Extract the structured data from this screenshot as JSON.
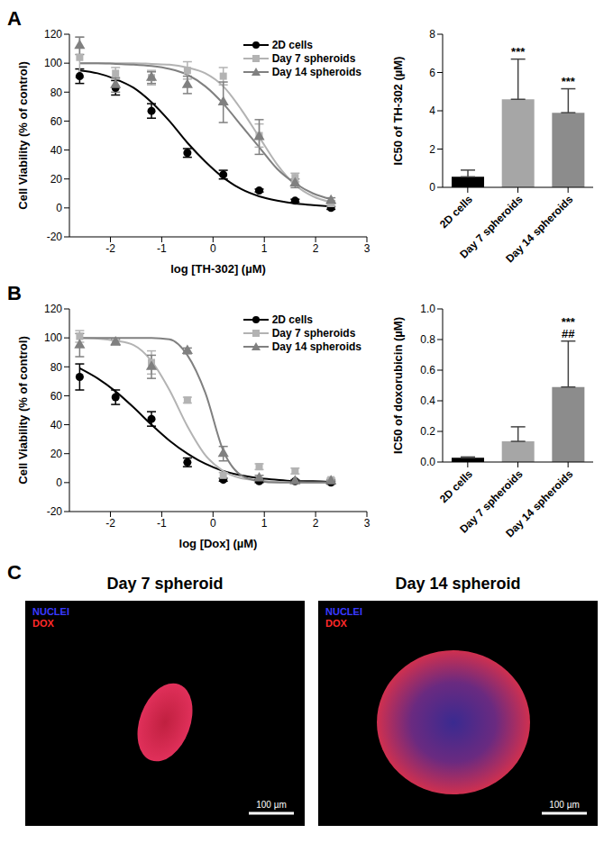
{
  "panel_labels": [
    "A",
    "B",
    "C"
  ],
  "chart_data": [
    {
      "type": "dose_response",
      "x_label": "log [TH-302] (µM)",
      "y_label": "Cell Viability (% of control)",
      "xlim": [
        -2.8,
        3
      ],
      "xticks": [
        -2,
        -1,
        0,
        1,
        2,
        3
      ],
      "ylim": [
        -20,
        120
      ],
      "yticks": [
        -20,
        0,
        20,
        40,
        60,
        80,
        100,
        120
      ],
      "grid": false,
      "legend": "upper right",
      "x": [
        -2.6,
        -1.9,
        -1.2,
        -0.5,
        0.2,
        0.9,
        1.6,
        2.3
      ],
      "fit_x": [
        -2.6,
        -2.25,
        -1.9,
        -1.55,
        -1.2,
        -0.85,
        -0.5,
        -0.15,
        0.2,
        0.55,
        0.9,
        1.25,
        1.6,
        1.95,
        2.3
      ],
      "series": [
        {
          "name": "2D cells",
          "color": "#000000",
          "marker": "circle",
          "values": [
            91,
            83,
            67,
            38,
            23,
            12,
            5,
            0
          ],
          "errors": [
            5,
            5,
            5,
            3,
            3,
            1,
            1,
            1
          ],
          "fit_values": [
            95,
            93,
            89,
            83,
            73,
            60,
            45,
            32,
            21,
            13,
            8,
            5,
            3,
            2,
            1
          ]
        },
        {
          "name": "Day 7 spheroids",
          "color": "#b3b3b3",
          "marker": "square",
          "values": [
            104,
            93,
            90,
            95,
            91,
            50,
            21,
            3
          ],
          "errors": [
            14,
            4,
            5,
            6,
            6,
            8,
            3,
            2
          ],
          "fit_values": [
            100,
            100,
            100,
            100,
            99.5,
            99,
            97,
            93,
            84,
            68,
            49,
            30,
            16,
            8,
            4
          ]
        },
        {
          "name": "Day 14 spheroids",
          "color": "#808080",
          "marker": "triangle",
          "values": [
            112,
            85,
            90,
            85,
            73,
            49,
            17,
            5
          ],
          "errors": [
            6,
            5,
            4,
            6,
            14,
            12,
            3,
            2
          ],
          "fit_values": [
            100,
            100,
            99.5,
            99,
            98,
            96,
            92,
            84,
            72,
            57,
            42,
            27,
            17,
            10,
            6
          ]
        }
      ]
    },
    {
      "type": "bar",
      "y_label": "IC50 of TH-302 (µM)",
      "categories": [
        "2D cells",
        "Day 7 spheroids",
        "Day 14 spheroids"
      ],
      "values": [
        0.55,
        4.6,
        3.9
      ],
      "errors": [
        0.35,
        2.1,
        1.25
      ],
      "annotations": [
        [],
        [
          "***"
        ],
        [
          "***"
        ]
      ],
      "colors": [
        "#000000",
        "#a6a6a6",
        "#8c8c8c"
      ],
      "ylim": [
        0,
        8
      ],
      "yticks": [
        0,
        2,
        4,
        6,
        8
      ],
      "grid": false
    },
    {
      "type": "dose_response",
      "x_label": "log [Dox] (µM)",
      "y_label": "Cell Viability (% of control)",
      "xlim": [
        -2.8,
        3
      ],
      "xticks": [
        -2,
        -1,
        0,
        1,
        2,
        3
      ],
      "ylim": [
        -20,
        120
      ],
      "yticks": [
        -20,
        0,
        20,
        40,
        60,
        80,
        100,
        120
      ],
      "grid": false,
      "legend": "upper right",
      "x": [
        -2.6,
        -1.9,
        -1.2,
        -0.5,
        0.2,
        0.9,
        1.6,
        2.3
      ],
      "fit_x": [
        -2.6,
        -2.25,
        -1.9,
        -1.55,
        -1.2,
        -0.85,
        -0.5,
        -0.15,
        0.2,
        0.55,
        0.9,
        1.25,
        1.6,
        1.95,
        2.3
      ],
      "series": [
        {
          "name": "2D cells",
          "color": "#000000",
          "marker": "circle",
          "values": [
            73,
            59,
            44,
            14,
            2,
            1,
            1,
            0
          ],
          "errors": [
            9,
            5,
            5,
            3,
            1,
            1,
            1,
            1
          ],
          "fit_values": [
            79,
            72,
            63,
            52,
            40,
            29,
            20,
            13,
            8,
            5,
            3,
            2,
            1,
            1,
            0.5
          ]
        },
        {
          "name": "Day 7 spheroids",
          "color": "#b3b3b3",
          "marker": "square",
          "values": [
            101,
            97,
            83,
            57,
            5,
            11,
            8,
            2
          ],
          "errors": [
            4,
            2,
            8,
            2,
            2,
            2,
            2,
            1
          ],
          "fit_values": [
            100,
            99.5,
            98,
            95,
            84,
            64,
            39,
            19,
            8,
            3,
            1.5,
            0.5,
            0.2,
            0.1,
            0
          ]
        },
        {
          "name": "Day 14 spheroids",
          "color": "#808080",
          "marker": "triangle",
          "values": [
            95,
            97,
            80,
            91,
            20,
            3,
            1,
            1
          ],
          "errors": [
            8,
            2,
            8,
            2,
            5,
            2,
            1,
            1
          ],
          "fit_values": [
            100,
            100,
            100,
            100,
            100,
            99,
            88,
            62,
            22,
            5,
            1,
            0,
            0,
            0,
            0
          ]
        }
      ]
    },
    {
      "type": "bar",
      "y_label": "IC50 of doxorubicin (µM)",
      "categories": [
        "2D cells",
        "Day 7 spheroids",
        "Day 14 spheroids"
      ],
      "values": [
        0.028,
        0.135,
        0.49
      ],
      "errors": [
        0.005,
        0.095,
        0.3
      ],
      "annotations": [
        [],
        [],
        [
          "***",
          "##"
        ]
      ],
      "colors": [
        "#000000",
        "#a6a6a6",
        "#8c8c8c"
      ],
      "ylim": [
        0,
        1
      ],
      "yticks": [
        {
          "value": 0,
          "label": "0.0"
        },
        0.2,
        0.4,
        0.6,
        0.8,
        {
          "value": 1,
          "label": "1.0"
        }
      ],
      "grid": false
    }
  ],
  "images": [
    {
      "title": "Day 7 spheroid",
      "channels": [
        {
          "name": "NUCLEI",
          "color": "#3a3aff"
        },
        {
          "name": "DOX",
          "color": "#ff2a2a"
        }
      ],
      "scale_bar": "100 µm"
    },
    {
      "title": "Day 14 spheroid",
      "channels": [
        {
          "name": "NUCLEI",
          "color": "#3a3aff"
        },
        {
          "name": "DOX",
          "color": "#ff2a2a"
        }
      ],
      "scale_bar": "100 µm"
    }
  ]
}
